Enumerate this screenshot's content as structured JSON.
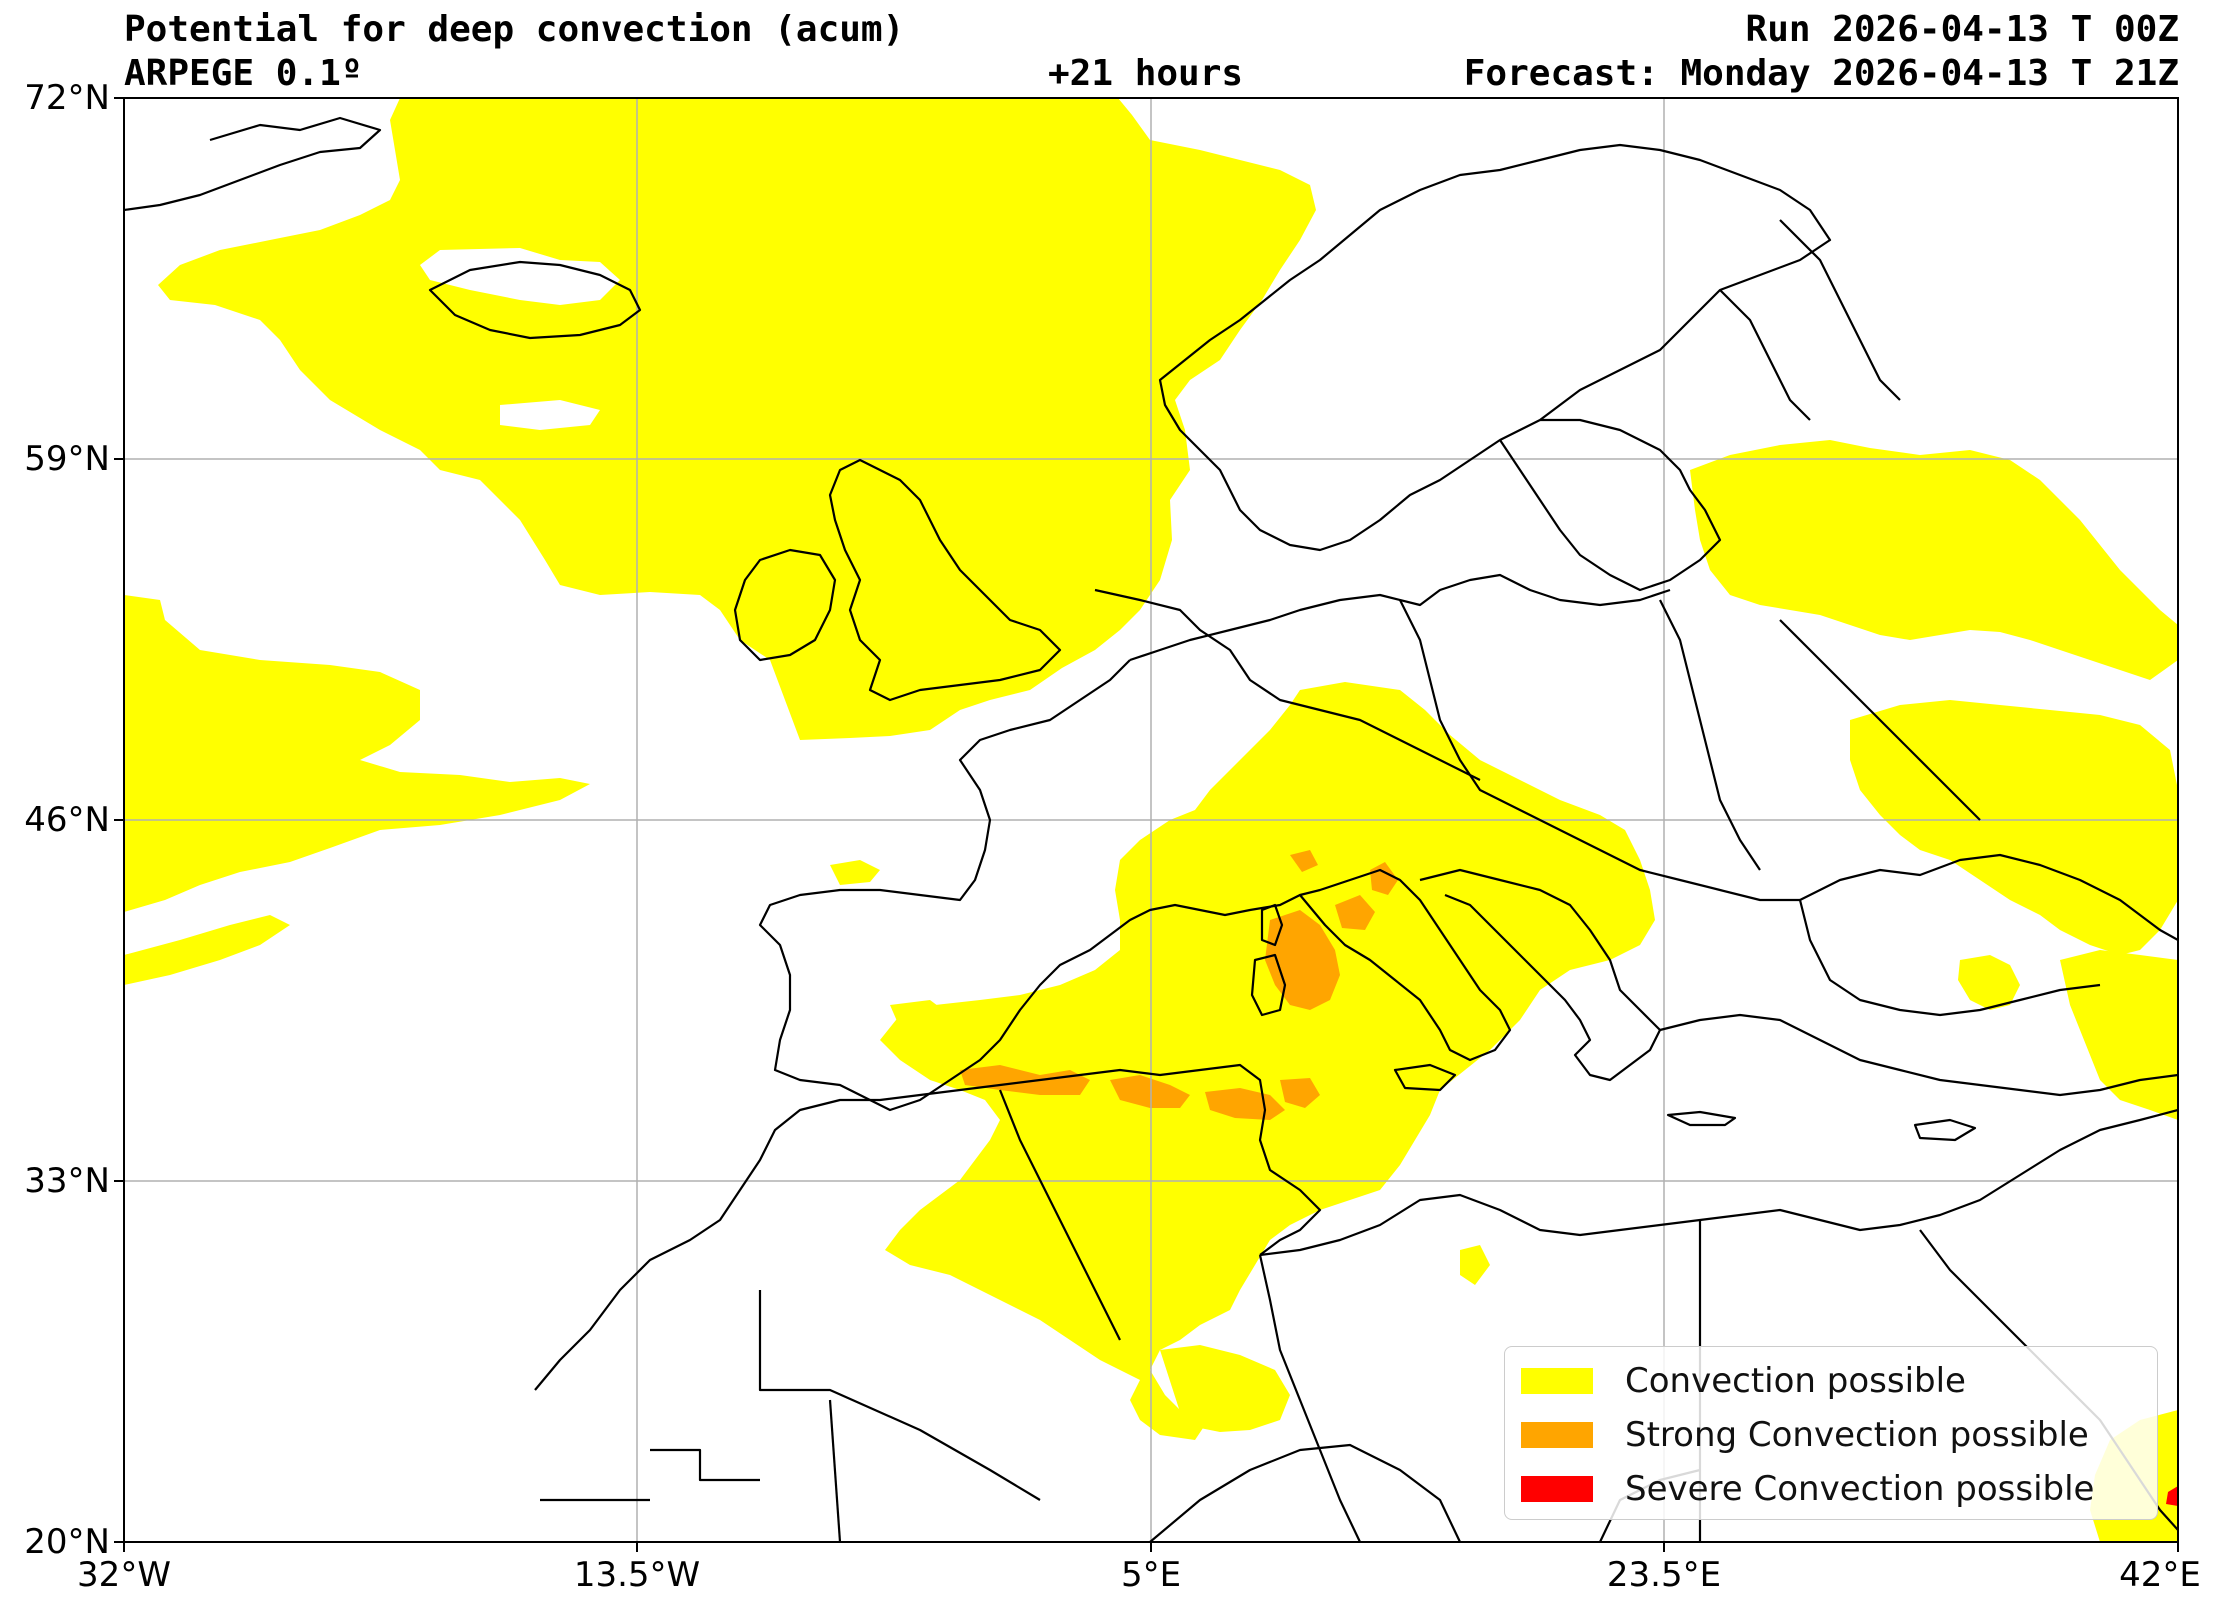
{
  "header": {
    "title": "Potential for deep convection (acum)",
    "model": "ARPEGE 0.1º",
    "lead_time": "+21 hours",
    "run": "Run 2026-04-13 T 00Z",
    "forecast": "Forecast: Monday 2026-04-13 T 21Z"
  },
  "axes": {
    "lat_ticks": [
      "72°N",
      "59°N",
      "46°N",
      "33°N",
      "20°N"
    ],
    "lon_ticks": [
      "32°W",
      "13.5°W",
      "5°E",
      "23.5°E",
      "42°E"
    ],
    "lat_range": [
      20,
      72
    ],
    "lon_range": [
      -32,
      42
    ],
    "grid": true
  },
  "legend": {
    "placement": "bottom-right",
    "items": [
      {
        "label": "Convection possible",
        "color": "#ffff00"
      },
      {
        "label": "Strong Convection possible",
        "color": "#ffa500"
      },
      {
        "label": "Severe Convection possible",
        "color": "#ff0000"
      }
    ]
  },
  "colors": {
    "convection": "#ffff00",
    "strong": "#ffa500",
    "severe": "#ff0000",
    "coast": "#000000",
    "grid": "#b0b0b0"
  }
}
